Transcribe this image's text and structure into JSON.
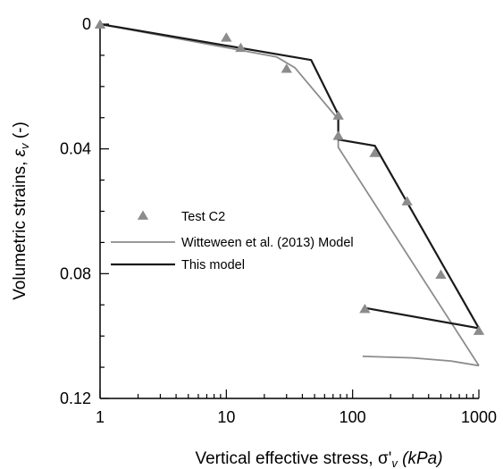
{
  "chart_data": {
    "type": "scatter",
    "xlabel_prefix": "Vertical effective stress, ",
    "xlabel_symbol": "σ'",
    "xlabel_subscript": "v",
    "xlabel_unit": " (kPa)",
    "ylabel_prefix": "Volumetric strains, ",
    "ylabel_symbol": "ε",
    "ylabel_subscript": "v",
    "ylabel_suffix": " (-)",
    "x_scale": "log",
    "xlim": [
      1,
      1000
    ],
    "ylim": [
      0,
      0.12
    ],
    "y_inverted": true,
    "x_tick_labels": [
      "1",
      "10",
      "100",
      "1000"
    ],
    "x_ticks": [
      1,
      10,
      100,
      1000
    ],
    "y_tick_labels": [
      "0",
      "0.04",
      "0.08",
      "0.12"
    ],
    "y_ticks": [
      0,
      0.04,
      0.08,
      0.12
    ],
    "legend_position": "middle-left",
    "series": [
      {
        "name": "Test C2",
        "kind": "markers",
        "color": "#8c8c8c",
        "x": [
          1,
          10,
          13,
          30,
          77,
          77,
          150,
          270,
          500,
          1000,
          125
        ],
        "y": [
          0.0003,
          0.0045,
          0.0078,
          0.0145,
          0.0295,
          0.036,
          0.0415,
          0.057,
          0.0805,
          0.0985,
          0.0915
        ]
      },
      {
        "name": "Witteween et al. (2013) Model",
        "kind": "line",
        "color": "#8c8c8c",
        "segments": [
          {
            "x": [
              1,
              25,
              35,
              77,
              77,
              1000
            ],
            "y": [
              0,
              0.0105,
              0.014,
              0.0305,
              0.0395,
              0.1095
            ]
          },
          {
            "x": [
              120,
              300,
              600,
              1000
            ],
            "y": [
              0.1065,
              0.107,
              0.108,
              0.1095
            ]
          }
        ]
      },
      {
        "name": "This model",
        "kind": "line",
        "color": "#1a1a1a",
        "segments": [
          {
            "x": [
              1,
              47,
              77,
              77,
              150,
              1000
            ],
            "y": [
              0,
              0.0115,
              0.029,
              0.037,
              0.039,
              0.0975
            ]
          },
          {
            "x": [
              125,
              1000
            ],
            "y": [
              0.091,
              0.0975
            ]
          }
        ]
      }
    ]
  }
}
